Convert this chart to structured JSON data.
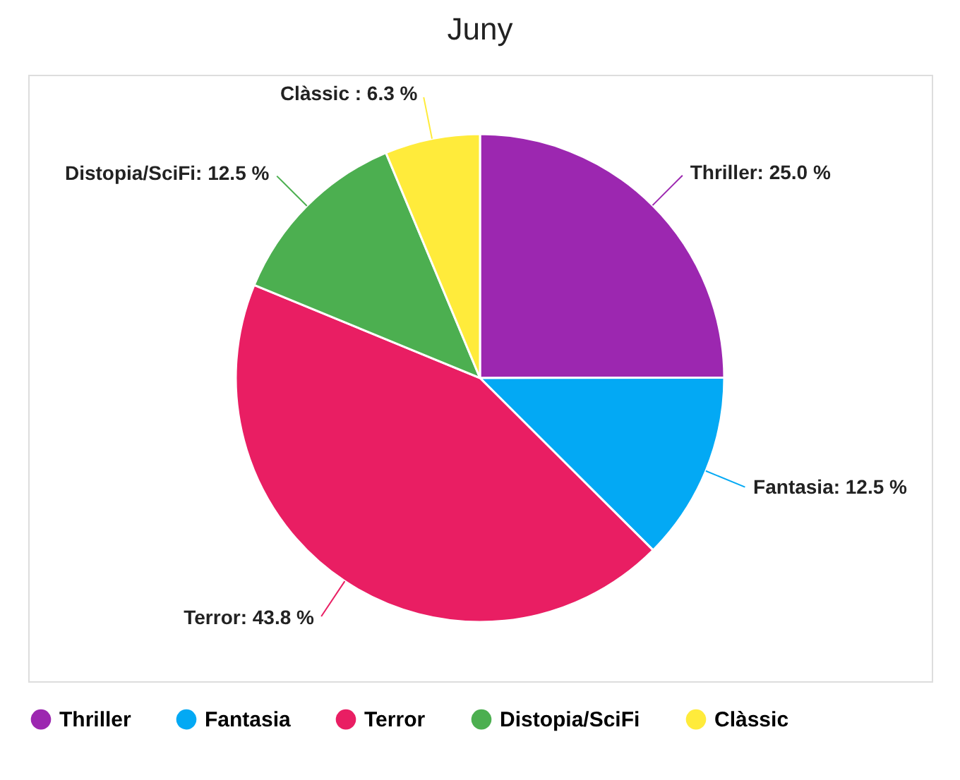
{
  "chart_data": {
    "type": "pie",
    "title": "Juny",
    "categories": [
      "Thriller",
      "Fantasia",
      "Terror",
      "Distopia/SciFi",
      "Clàssic"
    ],
    "values": [
      25.0,
      12.5,
      43.8,
      12.5,
      6.3
    ],
    "colors": [
      "#9c27b0",
      "#03a9f4",
      "#e91e63",
      "#4caf50",
      "#ffeb3b"
    ],
    "value_labels": [
      "Thriller: 25.0 %",
      "Fantasia: 12.5 %",
      "Terror: 43.8 %",
      "Distopia/SciFi: 12.5 %",
      "Clàssic : 6.3 %"
    ],
    "legend": "bottom"
  }
}
